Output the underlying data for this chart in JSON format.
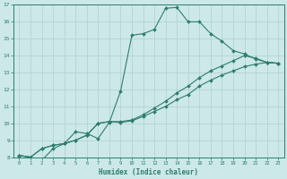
{
  "title": "",
  "xlabel": "Humidex (Indice chaleur)",
  "bg_color": "#cce8e8",
  "line_color": "#2e7d6e",
  "grid_color": "#b0d0d0",
  "xlim": [
    -0.5,
    23.5
  ],
  "ylim": [
    8,
    17
  ],
  "xticks": [
    0,
    1,
    2,
    3,
    4,
    5,
    6,
    7,
    8,
    9,
    10,
    11,
    12,
    13,
    14,
    15,
    16,
    17,
    18,
    19,
    20,
    21,
    22,
    23
  ],
  "yticks": [
    8,
    9,
    10,
    11,
    12,
    13,
    14,
    15,
    16,
    17
  ],
  "lines": [
    {
      "x": [
        0,
        1,
        2,
        3,
        4,
        5,
        6,
        7,
        8,
        9,
        10,
        11,
        12,
        13,
        14,
        15,
        16,
        17,
        18,
        19,
        20,
        21,
        22,
        23
      ],
      "y": [
        8.1,
        8.0,
        7.8,
        8.5,
        8.8,
        9.5,
        9.4,
        9.1,
        10.05,
        11.9,
        15.2,
        15.3,
        15.55,
        16.8,
        16.85,
        16.0,
        16.0,
        15.3,
        14.85,
        14.3,
        14.1,
        13.8,
        13.6,
        13.55
      ]
    },
    {
      "x": [
        0,
        1,
        2,
        3,
        4,
        5,
        6,
        7,
        8,
        9,
        10,
        11,
        12,
        13,
        14,
        15,
        16,
        17,
        18,
        19,
        20,
        21,
        22,
        23
      ],
      "y": [
        8.1,
        8.0,
        8.5,
        8.7,
        8.8,
        9.0,
        9.3,
        10.0,
        10.1,
        10.1,
        10.2,
        10.5,
        10.9,
        11.3,
        11.8,
        12.2,
        12.7,
        13.1,
        13.4,
        13.7,
        14.0,
        13.85,
        13.6,
        13.55
      ]
    },
    {
      "x": [
        0,
        1,
        2,
        3,
        4,
        5,
        6,
        7,
        8,
        9,
        10,
        11,
        12,
        13,
        14,
        15,
        16,
        17,
        18,
        19,
        20,
        21,
        22,
        23
      ],
      "y": [
        8.1,
        8.0,
        8.5,
        8.7,
        8.8,
        9.0,
        9.3,
        10.0,
        10.1,
        10.05,
        10.15,
        10.4,
        10.7,
        11.0,
        11.4,
        11.7,
        12.2,
        12.55,
        12.85,
        13.1,
        13.35,
        13.5,
        13.6,
        13.55
      ]
    }
  ]
}
